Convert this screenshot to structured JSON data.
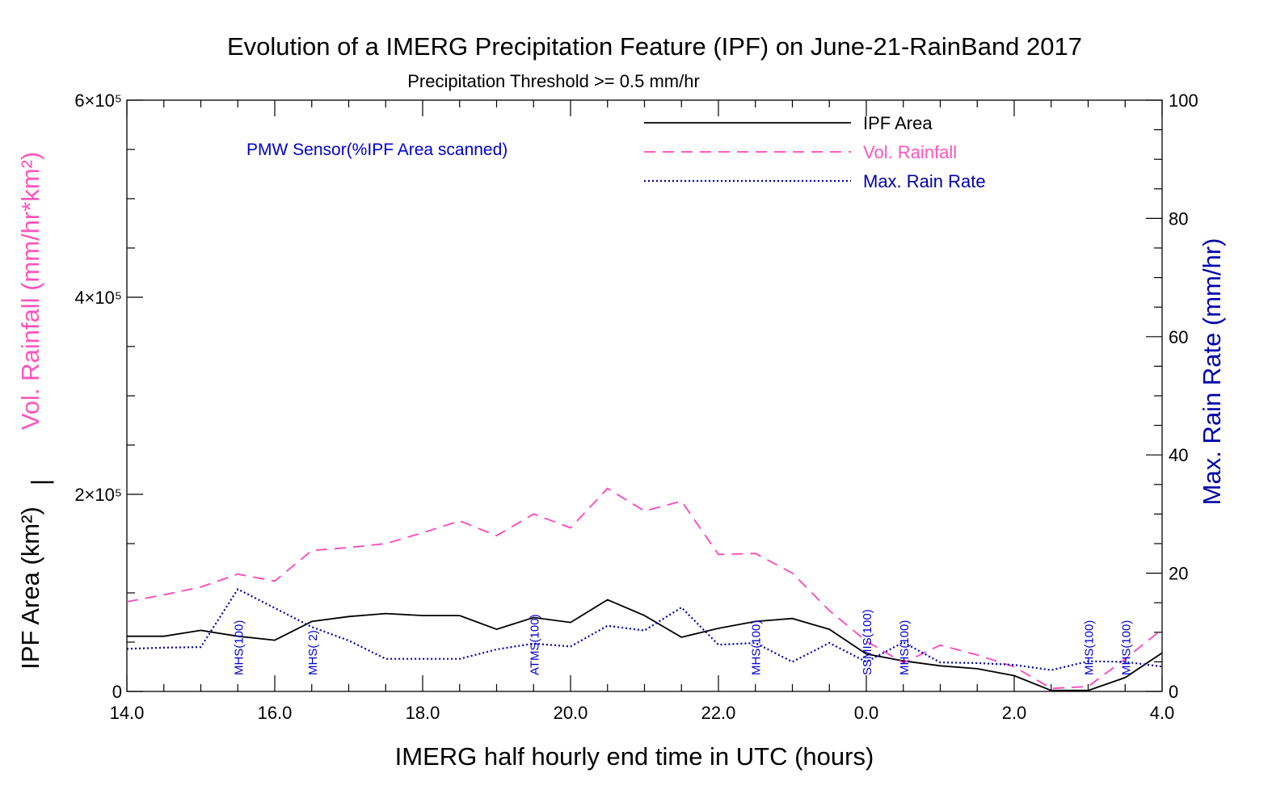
{
  "chart_data": {
    "type": "line",
    "title": "Evolution of a IMERG Precipitation Feature (IPF) on June-21-RainBand 2017",
    "subtitle": "Precipitation Threshold >= 0.5 mm/hr",
    "xlabel": "IMERG half hourly end time in UTC (hours)",
    "ylabel_left_top": "Vol. Rainfall (mm/hr*km²)",
    "ylabel_left_sep": "|",
    "ylabel_left_bottom": "IPF Area (km²)",
    "ylabel_right": "Max. Rain Rate (mm/hr)",
    "sensor_heading": "PMW Sensor(%IPF Area scanned)",
    "x_tick_labels": [
      "14.0",
      "16.0",
      "18.0",
      "20.0",
      "22.0",
      "0.0",
      "2.0",
      "4.0"
    ],
    "y_left_ticks": [
      {
        "value": 0,
        "label": "0"
      },
      {
        "value": 200000,
        "label": "2×10⁵"
      },
      {
        "value": 400000,
        "label": "4×10⁵"
      },
      {
        "value": 600000,
        "label": "6×10⁵"
      }
    ],
    "y_right_ticks": [
      0,
      20,
      40,
      60,
      80,
      100
    ],
    "ylim_left": [
      0,
      600000
    ],
    "ylim_right": [
      0,
      100
    ],
    "x_hours": [
      14.0,
      14.5,
      15.0,
      15.5,
      16.0,
      16.5,
      17.0,
      17.5,
      18.0,
      18.5,
      19.0,
      19.5,
      20.0,
      20.5,
      21.0,
      21.5,
      22.0,
      22.5,
      23.0,
      23.5,
      24.0,
      24.5,
      25.0,
      25.5,
      26.0,
      26.5,
      27.0,
      27.5,
      28.0
    ],
    "xlim": [
      14.0,
      28.0
    ],
    "legend_position": "top-right",
    "series": [
      {
        "name": "IPF Area",
        "axis": "left",
        "color": "#000000",
        "style": "solid",
        "values": [
          56000,
          56000,
          62000,
          56000,
          52000,
          71000,
          76000,
          79000,
          77000,
          77000,
          63000,
          75000,
          70000,
          93000,
          77000,
          55000,
          64000,
          71000,
          74000,
          63000,
          38000,
          31000,
          26000,
          23000,
          16000,
          1000,
          1000,
          14000,
          39000
        ]
      },
      {
        "name": "Vol. Rainfall",
        "axis": "left",
        "color": "#ff44bb",
        "style": "dashed",
        "values": [
          91000,
          98000,
          106000,
          119000,
          112000,
          143000,
          146000,
          150000,
          161000,
          173000,
          158000,
          180000,
          166000,
          206000,
          183000,
          193000,
          139000,
          140000,
          120000,
          82000,
          51000,
          29000,
          47000,
          37000,
          25000,
          3000,
          5000,
          33000,
          63000
        ]
      },
      {
        "name": "Max. Rain Rate",
        "axis": "right",
        "color": "#0000aa",
        "style": "dotted",
        "values": [
          7.2,
          7.4,
          7.5,
          17.3,
          14.1,
          10.9,
          8.6,
          5.5,
          5.5,
          5.5,
          7.1,
          8.1,
          7.6,
          11.1,
          10.3,
          14.2,
          7.9,
          8.2,
          5.0,
          8.2,
          5.0,
          8.3,
          4.9,
          4.8,
          4.5,
          3.6,
          5.1,
          5.0,
          4.2
        ]
      }
    ],
    "sensor_annotations": [
      {
        "x": 15.5,
        "label": "MHS(100)"
      },
      {
        "x": 16.5,
        "label": "MHS(  2)"
      },
      {
        "x": 19.5,
        "label": "ATMS(100)"
      },
      {
        "x": 22.5,
        "label": "MHS(100)"
      },
      {
        "x": 24.0,
        "label": "SSMIS(100)"
      },
      {
        "x": 24.5,
        "label": "MHS(100)"
      },
      {
        "x": 27.0,
        "label": "MHS(100)"
      },
      {
        "x": 27.5,
        "label": "MHS(100)"
      }
    ],
    "colors": {
      "axis": "#000000",
      "vol_rainfall_label": "#ff55bb",
      "max_rain_rate_label": "#0000aa",
      "sensor_text": "#0000cc"
    }
  }
}
